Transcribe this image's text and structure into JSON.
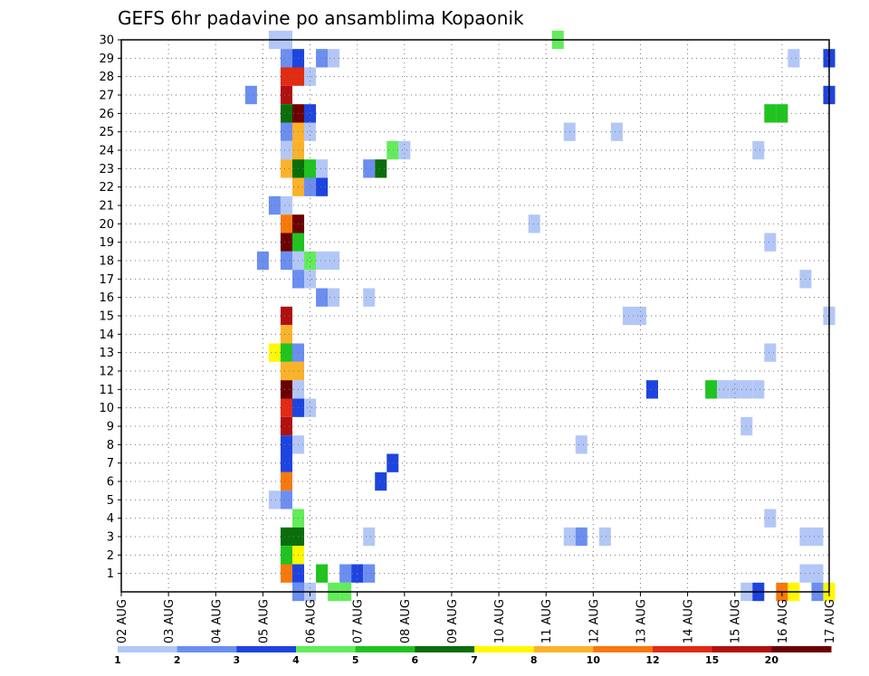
{
  "chart_data": {
    "type": "heatmap",
    "title": "GEFS 6hr padavine po ansamblima Kopaonik",
    "x_tick_labels": [
      "02 AUG",
      "03 AUG",
      "04 AUG",
      "05 AUG",
      "06 AUG",
      "07 AUG",
      "08 AUG",
      "09 AUG",
      "10 AUG",
      "11 AUG",
      "12 AUG",
      "13 AUG",
      "14 AUG",
      "15 AUG",
      "16 AUG",
      "17 AUG"
    ],
    "y_tick_labels": [
      "1",
      "2",
      "3",
      "4",
      "5",
      "6",
      "7",
      "8",
      "9",
      "10",
      "11",
      "12",
      "13",
      "14",
      "15",
      "16",
      "17",
      "18",
      "19",
      "20",
      "21",
      "22",
      "23",
      "24",
      "25",
      "26",
      "27",
      "28",
      "29",
      "30"
    ],
    "xlim_days": [
      0,
      15
    ],
    "ylim_members": [
      0,
      30
    ],
    "grid": true,
    "legend": {
      "placement": "bottom",
      "thresholds": [
        "1",
        "2",
        "3",
        "4",
        "5",
        "6",
        "7",
        "8",
        "10",
        "12",
        "15",
        "20"
      ],
      "colors": [
        "#b3c7f7",
        "#6b8ef0",
        "#1d44e0",
        "#62ec5a",
        "#1fc41f",
        "#0a6e0a",
        "#fff800",
        "#fbb22b",
        "#f7790b",
        "#e12b12",
        "#b01010",
        "#6b0000"
      ]
    },
    "cells": [
      {
        "member": 30,
        "day": 3.25,
        "level": 1
      },
      {
        "member": 30,
        "day": 3.5,
        "level": 1
      },
      {
        "member": 30,
        "day": 9.25,
        "level": 4
      },
      {
        "member": 29,
        "day": 3.5,
        "level": 2
      },
      {
        "member": 29,
        "day": 3.75,
        "level": 3
      },
      {
        "member": 29,
        "day": 4.25,
        "level": 2
      },
      {
        "member": 29,
        "day": 4.5,
        "level": 1
      },
      {
        "member": 29,
        "day": 14.25,
        "level": 1
      },
      {
        "member": 29,
        "day": 15.0,
        "level": 3
      },
      {
        "member": 28,
        "day": 3.5,
        "level": 10
      },
      {
        "member": 28,
        "day": 3.75,
        "level": 10
      },
      {
        "member": 28,
        "day": 4.0,
        "level": 1
      },
      {
        "member": 27,
        "day": 2.75,
        "level": 2
      },
      {
        "member": 27,
        "day": 3.5,
        "level": 11
      },
      {
        "member": 27,
        "day": 15.0,
        "level": 3
      },
      {
        "member": 26,
        "day": 3.5,
        "level": 6
      },
      {
        "member": 26,
        "day": 3.75,
        "level": 12
      },
      {
        "member": 26,
        "day": 4.0,
        "level": 3
      },
      {
        "member": 26,
        "day": 13.75,
        "level": 5
      },
      {
        "member": 26,
        "day": 14.0,
        "level": 5
      },
      {
        "member": 25,
        "day": 3.5,
        "level": 2
      },
      {
        "member": 25,
        "day": 3.75,
        "level": 8
      },
      {
        "member": 25,
        "day": 4.0,
        "level": 1
      },
      {
        "member": 25,
        "day": 9.5,
        "level": 1
      },
      {
        "member": 25,
        "day": 10.5,
        "level": 1
      },
      {
        "member": 24,
        "day": 3.5,
        "level": 1
      },
      {
        "member": 24,
        "day": 3.75,
        "level": 8
      },
      {
        "member": 24,
        "day": 5.75,
        "level": 4
      },
      {
        "member": 24,
        "day": 6.0,
        "level": 1
      },
      {
        "member": 24,
        "day": 13.5,
        "level": 1
      },
      {
        "member": 23,
        "day": 3.5,
        "level": 8
      },
      {
        "member": 23,
        "day": 3.75,
        "level": 6
      },
      {
        "member": 23,
        "day": 4.0,
        "level": 5
      },
      {
        "member": 23,
        "day": 4.25,
        "level": 1
      },
      {
        "member": 23,
        "day": 5.25,
        "level": 2
      },
      {
        "member": 23,
        "day": 5.5,
        "level": 6
      },
      {
        "member": 22,
        "day": 3.75,
        "level": 8
      },
      {
        "member": 22,
        "day": 4.0,
        "level": 2
      },
      {
        "member": 22,
        "day": 4.25,
        "level": 3
      },
      {
        "member": 21,
        "day": 3.25,
        "level": 2
      },
      {
        "member": 21,
        "day": 3.5,
        "level": 1
      },
      {
        "member": 20,
        "day": 3.5,
        "level": 9
      },
      {
        "member": 20,
        "day": 3.75,
        "level": 12
      },
      {
        "member": 20,
        "day": 8.75,
        "level": 1
      },
      {
        "member": 19,
        "day": 3.5,
        "level": 12
      },
      {
        "member": 19,
        "day": 3.75,
        "level": 5
      },
      {
        "member": 19,
        "day": 13.75,
        "level": 1
      },
      {
        "member": 18,
        "day": 3.0,
        "level": 2
      },
      {
        "member": 18,
        "day": 3.5,
        "level": 2
      },
      {
        "member": 18,
        "day": 3.75,
        "level": 1
      },
      {
        "member": 18,
        "day": 4.0,
        "level": 4
      },
      {
        "member": 18,
        "day": 4.25,
        "level": 1
      },
      {
        "member": 18,
        "day": 4.5,
        "level": 1
      },
      {
        "member": 17,
        "day": 3.75,
        "level": 2
      },
      {
        "member": 17,
        "day": 4.0,
        "level": 1
      },
      {
        "member": 17,
        "day": 14.5,
        "level": 1
      },
      {
        "member": 16,
        "day": 4.25,
        "level": 2
      },
      {
        "member": 16,
        "day": 4.5,
        "level": 1
      },
      {
        "member": 16,
        "day": 5.25,
        "level": 1
      },
      {
        "member": 15,
        "day": 3.5,
        "level": 11
      },
      {
        "member": 15,
        "day": 10.75,
        "level": 1
      },
      {
        "member": 15,
        "day": 11.0,
        "level": 1
      },
      {
        "member": 15,
        "day": 15.0,
        "level": 1
      },
      {
        "member": 14,
        "day": 3.5,
        "level": 8
      },
      {
        "member": 13,
        "day": 3.25,
        "level": 7
      },
      {
        "member": 13,
        "day": 3.5,
        "level": 5
      },
      {
        "member": 13,
        "day": 3.75,
        "level": 2
      },
      {
        "member": 13,
        "day": 13.75,
        "level": 1
      },
      {
        "member": 12,
        "day": 3.5,
        "level": 8
      },
      {
        "member": 12,
        "day": 3.75,
        "level": 8
      },
      {
        "member": 11,
        "day": 3.5,
        "level": 12
      },
      {
        "member": 11,
        "day": 3.75,
        "level": 1
      },
      {
        "member": 11,
        "day": 11.25,
        "level": 3
      },
      {
        "member": 11,
        "day": 12.5,
        "level": 5
      },
      {
        "member": 11,
        "day": 12.75,
        "level": 1
      },
      {
        "member": 11,
        "day": 13.0,
        "level": 1
      },
      {
        "member": 11,
        "day": 13.25,
        "level": 1
      },
      {
        "member": 11,
        "day": 13.5,
        "level": 1
      },
      {
        "member": 10,
        "day": 3.5,
        "level": 10
      },
      {
        "member": 10,
        "day": 3.75,
        "level": 3
      },
      {
        "member": 10,
        "day": 4.0,
        "level": 1
      },
      {
        "member": 9,
        "day": 3.5,
        "level": 11
      },
      {
        "member": 9,
        "day": 13.25,
        "level": 1
      },
      {
        "member": 8,
        "day": 3.5,
        "level": 3
      },
      {
        "member": 8,
        "day": 3.75,
        "level": 1
      },
      {
        "member": 8,
        "day": 9.75,
        "level": 1
      },
      {
        "member": 7,
        "day": 3.5,
        "level": 3
      },
      {
        "member": 7,
        "day": 5.75,
        "level": 3
      },
      {
        "member": 6,
        "day": 3.5,
        "level": 9
      },
      {
        "member": 6,
        "day": 5.5,
        "level": 3
      },
      {
        "member": 5,
        "day": 3.25,
        "level": 1
      },
      {
        "member": 5,
        "day": 3.5,
        "level": 2
      },
      {
        "member": 4,
        "day": 3.75,
        "level": 4
      },
      {
        "member": 4,
        "day": 13.75,
        "level": 1
      },
      {
        "member": 3,
        "day": 3.5,
        "level": 6
      },
      {
        "member": 3,
        "day": 3.75,
        "level": 6
      },
      {
        "member": 3,
        "day": 5.25,
        "level": 1
      },
      {
        "member": 3,
        "day": 9.5,
        "level": 1
      },
      {
        "member": 3,
        "day": 9.75,
        "level": 2
      },
      {
        "member": 3,
        "day": 10.25,
        "level": 1
      },
      {
        "member": 3,
        "day": 14.5,
        "level": 1
      },
      {
        "member": 3,
        "day": 14.75,
        "level": 1
      },
      {
        "member": 2,
        "day": 3.5,
        "level": 5
      },
      {
        "member": 2,
        "day": 3.75,
        "level": 7
      },
      {
        "member": 1,
        "day": 3.5,
        "level": 9
      },
      {
        "member": 1,
        "day": 3.75,
        "level": 3
      },
      {
        "member": 1,
        "day": 4.25,
        "level": 5
      },
      {
        "member": 1,
        "day": 4.75,
        "level": 2
      },
      {
        "member": 1,
        "day": 5.0,
        "level": 3
      },
      {
        "member": 1,
        "day": 5.25,
        "level": 2
      },
      {
        "member": 1,
        "day": 14.5,
        "level": 1
      },
      {
        "member": 1,
        "day": 14.75,
        "level": 1
      },
      {
        "member": 0,
        "day": 3.75,
        "level": 2
      },
      {
        "member": 0,
        "day": 4.0,
        "level": 1
      },
      {
        "member": 0,
        "day": 4.5,
        "level": 4
      },
      {
        "member": 0,
        "day": 4.75,
        "level": 4
      },
      {
        "member": 0,
        "day": 13.25,
        "level": 1
      },
      {
        "member": 0,
        "day": 13.5,
        "level": 3
      },
      {
        "member": 0,
        "day": 14.0,
        "level": 9
      },
      {
        "member": 0,
        "day": 14.25,
        "level": 7
      },
      {
        "member": 0,
        "day": 14.75,
        "level": 2
      },
      {
        "member": 0,
        "day": 15.0,
        "level": 7
      }
    ]
  }
}
